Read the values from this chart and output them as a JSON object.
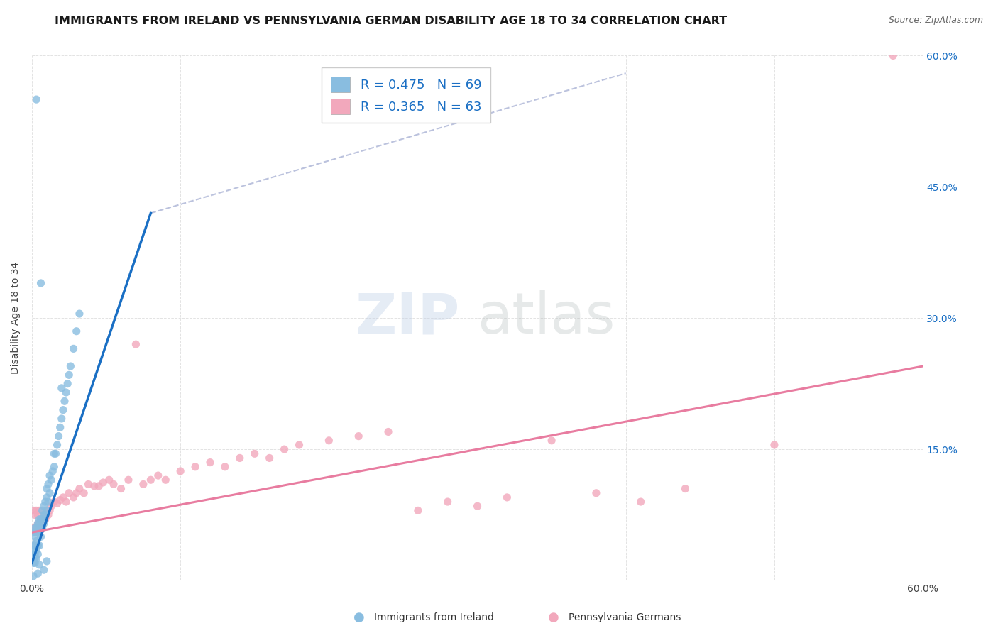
{
  "title": "IMMIGRANTS FROM IRELAND VS PENNSYLVANIA GERMAN DISABILITY AGE 18 TO 34 CORRELATION CHART",
  "source": "Source: ZipAtlas.com",
  "ylabel": "Disability Age 18 to 34",
  "xlim": [
    0.0,
    0.6
  ],
  "ylim": [
    0.0,
    0.6
  ],
  "ytick_vals_right": [
    0.15,
    0.3,
    0.45,
    0.6
  ],
  "ytick_labels_right": [
    "15.0%",
    "30.0%",
    "45.0%",
    "60.0%"
  ],
  "blue_color": "#89bde0",
  "pink_color": "#f2a8bc",
  "blue_line_color": "#1a6fc4",
  "pink_line_color": "#e87ca0",
  "dash_color": "#b0b8d8",
  "legend_text_color": "#1a6fc4",
  "R_blue": 0.475,
  "N_blue": 69,
  "R_pink": 0.365,
  "N_pink": 63,
  "grid_color": "#e0e0e0",
  "background_color": "#ffffff",
  "title_fontsize": 11.5,
  "axis_label_fontsize": 10,
  "watermark_zip": "ZIP",
  "watermark_atlas": "atlas",
  "blue_label": "Immigrants from Ireland",
  "pink_label": "Pennsylvania Germans",
  "blue_scatter_x": [
    0.001,
    0.001,
    0.001,
    0.001,
    0.001,
    0.002,
    0.002,
    0.002,
    0.002,
    0.002,
    0.002,
    0.003,
    0.003,
    0.003,
    0.003,
    0.003,
    0.004,
    0.004,
    0.004,
    0.004,
    0.005,
    0.005,
    0.005,
    0.005,
    0.006,
    0.006,
    0.006,
    0.007,
    0.007,
    0.007,
    0.008,
    0.008,
    0.008,
    0.009,
    0.009,
    0.01,
    0.01,
    0.01,
    0.011,
    0.011,
    0.012,
    0.012,
    0.013,
    0.014,
    0.015,
    0.015,
    0.016,
    0.017,
    0.018,
    0.019,
    0.02,
    0.021,
    0.022,
    0.023,
    0.024,
    0.025,
    0.026,
    0.028,
    0.03,
    0.032,
    0.02,
    0.006,
    0.003,
    0.001,
    0.004,
    0.008,
    0.002,
    0.005,
    0.01
  ],
  "blue_scatter_y": [
    0.02,
    0.025,
    0.03,
    0.035,
    0.04,
    0.02,
    0.025,
    0.03,
    0.04,
    0.05,
    0.055,
    0.025,
    0.035,
    0.045,
    0.055,
    0.06,
    0.03,
    0.04,
    0.055,
    0.065,
    0.04,
    0.055,
    0.065,
    0.07,
    0.05,
    0.06,
    0.07,
    0.06,
    0.07,
    0.08,
    0.065,
    0.075,
    0.085,
    0.075,
    0.09,
    0.08,
    0.095,
    0.105,
    0.09,
    0.11,
    0.1,
    0.12,
    0.115,
    0.125,
    0.13,
    0.145,
    0.145,
    0.155,
    0.165,
    0.175,
    0.185,
    0.195,
    0.205,
    0.215,
    0.225,
    0.235,
    0.245,
    0.265,
    0.285,
    0.305,
    0.22,
    0.34,
    0.55,
    0.005,
    0.008,
    0.012,
    0.06,
    0.018,
    0.022
  ],
  "pink_scatter_x": [
    0.001,
    0.001,
    0.002,
    0.002,
    0.003,
    0.003,
    0.004,
    0.004,
    0.005,
    0.005,
    0.006,
    0.007,
    0.008,
    0.009,
    0.01,
    0.011,
    0.012,
    0.013,
    0.015,
    0.017,
    0.019,
    0.021,
    0.023,
    0.025,
    0.028,
    0.03,
    0.032,
    0.035,
    0.038,
    0.042,
    0.045,
    0.048,
    0.052,
    0.055,
    0.06,
    0.065,
    0.07,
    0.075,
    0.08,
    0.085,
    0.09,
    0.1,
    0.11,
    0.12,
    0.13,
    0.14,
    0.15,
    0.16,
    0.17,
    0.18,
    0.2,
    0.22,
    0.24,
    0.26,
    0.28,
    0.3,
    0.32,
    0.35,
    0.38,
    0.41,
    0.44,
    0.5,
    0.58
  ],
  "pink_scatter_y": [
    0.06,
    0.08,
    0.055,
    0.075,
    0.06,
    0.08,
    0.065,
    0.075,
    0.06,
    0.08,
    0.07,
    0.065,
    0.075,
    0.07,
    0.08,
    0.075,
    0.08,
    0.085,
    0.09,
    0.088,
    0.092,
    0.095,
    0.09,
    0.1,
    0.095,
    0.1,
    0.105,
    0.1,
    0.11,
    0.108,
    0.108,
    0.112,
    0.115,
    0.11,
    0.105,
    0.115,
    0.27,
    0.11,
    0.115,
    0.12,
    0.115,
    0.125,
    0.13,
    0.135,
    0.13,
    0.14,
    0.145,
    0.14,
    0.15,
    0.155,
    0.16,
    0.165,
    0.17,
    0.08,
    0.09,
    0.085,
    0.095,
    0.16,
    0.1,
    0.09,
    0.105,
    0.155,
    0.6
  ],
  "blue_trend_x": [
    0.0,
    0.08
  ],
  "blue_trend_y": [
    0.02,
    0.42
  ],
  "dash_trend_x": [
    0.08,
    0.4
  ],
  "dash_trend_y": [
    0.42,
    0.58
  ],
  "pink_trend_x": [
    0.0,
    0.6
  ],
  "pink_trend_y": [
    0.055,
    0.245
  ]
}
